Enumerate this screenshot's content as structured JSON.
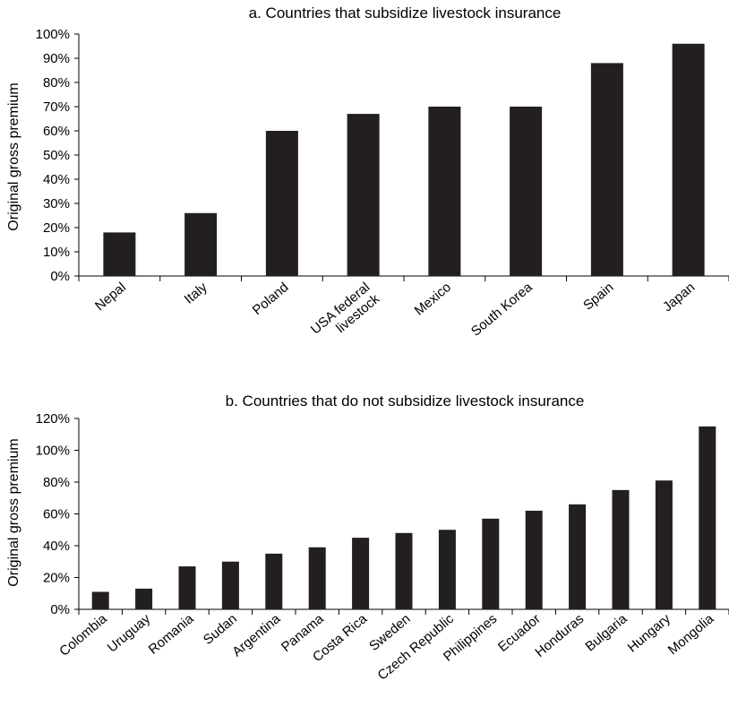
{
  "chart_data": [
    {
      "type": "bar",
      "title": "a. Countries that subsidize livestock insurance",
      "ylabel": "Original gross premium",
      "xlabel": "",
      "ylim": [
        0,
        100
      ],
      "yticks": [
        "0%",
        "10%",
        "20%",
        "30%",
        "40%",
        "50%",
        "60%",
        "70%",
        "80%",
        "90%",
        "100%"
      ],
      "categories": [
        "Nepal",
        "Italy",
        "Poland",
        "USA federal livestock",
        "Mexico",
        "South Korea",
        "Spain",
        "Japan"
      ],
      "category_lines": [
        [
          "Nepal"
        ],
        [
          "Italy"
        ],
        [
          "Poland"
        ],
        [
          "USA federal",
          "livestock"
        ],
        [
          "Mexico"
        ],
        [
          "South Korea"
        ],
        [
          "Spain"
        ],
        [
          "Japan"
        ]
      ],
      "values": [
        18,
        26,
        60,
        67,
        70,
        70,
        88,
        96
      ],
      "bar_color": "#231f20",
      "grid": false
    },
    {
      "type": "bar",
      "title": "b. Countries that do not subsidize livestock insurance",
      "ylabel": "Original gross premium",
      "xlabel": "",
      "ylim": [
        0,
        120
      ],
      "yticks": [
        "0%",
        "20%",
        "40%",
        "60%",
        "80%",
        "100%",
        "120%"
      ],
      "categories": [
        "Colombia",
        "Uruguay",
        "Romania",
        "Sudan",
        "Argentina",
        "Panama",
        "Costa Rica",
        "Sweden",
        "Czech Republic",
        "Philippines",
        "Ecuador",
        "Honduras",
        "Bulgaria",
        "Hungary",
        "Mongolia"
      ],
      "category_lines": [
        [
          "Colombia"
        ],
        [
          "Uruguay"
        ],
        [
          "Romania"
        ],
        [
          "Sudan"
        ],
        [
          "Argentina"
        ],
        [
          "Panama"
        ],
        [
          "Costa Rica"
        ],
        [
          "Sweden"
        ],
        [
          "Czech Republic"
        ],
        [
          "Philippines"
        ],
        [
          "Ecuador"
        ],
        [
          "Honduras"
        ],
        [
          "Bulgaria"
        ],
        [
          "Hungary"
        ],
        [
          "Mongolia"
        ]
      ],
      "values": [
        11,
        13,
        27,
        30,
        35,
        39,
        45,
        48,
        50,
        57,
        62,
        66,
        75,
        81,
        115
      ],
      "bar_color": "#231f20",
      "grid": false
    }
  ]
}
